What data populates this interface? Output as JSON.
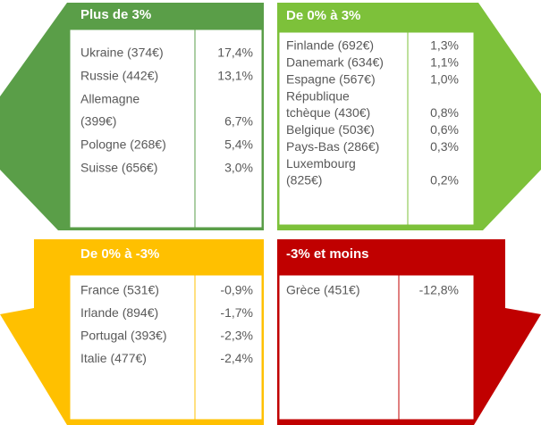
{
  "panels": [
    {
      "title": "Plus de  3%",
      "rows": [
        {
          "label": [
            "Ukraine (374€)"
          ],
          "value": "17,4%"
        },
        {
          "label": [
            "Russie (442€)"
          ],
          "value": "13,1%"
        },
        {
          "label": [
            "Allemagne",
            "(399€)"
          ],
          "value": "6,7%"
        },
        {
          "label": [
            "Pologne (268€)"
          ],
          "value": "5,4%"
        },
        {
          "label": [
            "Suisse (656€)"
          ],
          "value": "3,0%"
        }
      ]
    },
    {
      "title": "De 0% à 3%",
      "rows": [
        {
          "label": [
            "Finlande (692€)"
          ],
          "value": "1,3%"
        },
        {
          "label": [
            "Danemark (634€)"
          ],
          "value": "1,1%"
        },
        {
          "label": [
            "Espagne (567€)"
          ],
          "value": "1,0%"
        },
        {
          "label": [
            "République",
            "tchèque (430€)"
          ],
          "value": "0,8%"
        },
        {
          "label": [
            "Belgique (503€)"
          ],
          "value": "0,6%"
        },
        {
          "label": [
            "Pays-Bas (286€)"
          ],
          "value": "0,3%"
        },
        {
          "label": [
            "Luxembourg",
            "(825€)"
          ],
          "value": "0,2%"
        }
      ]
    },
    {
      "title": "De 0% à -3%",
      "rows": [
        {
          "label": [
            "France (531€)"
          ],
          "value": "-0,9%"
        },
        {
          "label": [
            "Irlande  (894€)"
          ],
          "value": "-1,7%"
        },
        {
          "label": [
            "Portugal (393€)"
          ],
          "value": "-2,3%"
        },
        {
          "label": [
            "Italie (477€)"
          ],
          "value": "-2,4%"
        }
      ]
    },
    {
      "title": "-3% et moins",
      "rows": [
        {
          "label": [
            "Grèce (451€)"
          ],
          "value": "-12,8%"
        }
      ]
    }
  ]
}
